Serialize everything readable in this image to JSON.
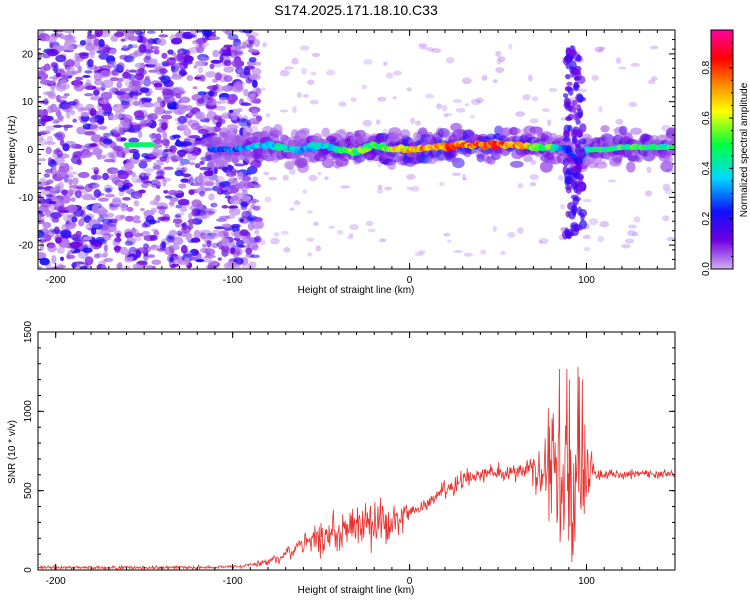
{
  "title": "S174.2025.171.18.10.C33",
  "chart_data": [
    {
      "type": "heatmap",
      "title": "S174.2025.171.18.10.C33",
      "xlabel": "Height of straight line (km)",
      "ylabel": "Frequency (Hz)",
      "xlim": [
        -210,
        150
      ],
      "ylim": [
        -25,
        25
      ],
      "xticks": [
        -200,
        -100,
        0,
        100
      ],
      "yticks": [
        -20,
        -10,
        0,
        10,
        20
      ],
      "xtick_labels": [
        "-200",
        "-100",
        "0",
        "100"
      ],
      "ytick_labels": [
        "-20",
        "-10",
        "0",
        "10",
        "20"
      ],
      "colorbar": {
        "label": "Normalized spectral amplitude",
        "range": [
          0,
          0.95
        ],
        "ticks": [
          "0.0",
          "0.2",
          "0.4",
          "0.6",
          "0.8"
        ],
        "colormap": [
          "#d0b0f0",
          "#7000e0",
          "#1010ff",
          "#00d8ff",
          "#00ff40",
          "#ffff00",
          "#ff8000",
          "#ff0000",
          "#ff00a0"
        ]
      },
      "ridge": {
        "x": [
          -160,
          -145,
          -110,
          -100,
          -90,
          -80,
          -70,
          -60,
          -50,
          -40,
          -30,
          -20,
          -10,
          0,
          10,
          20,
          30,
          40,
          50,
          60,
          70,
          80,
          90,
          95,
          100,
          110,
          120,
          130,
          140,
          150
        ],
        "freq": [
          1.0,
          1.0,
          0.0,
          0.0,
          0.5,
          1.0,
          0.0,
          0.0,
          1.0,
          0.0,
          -0.5,
          1.0,
          0.0,
          0.0,
          0.5,
          0.5,
          1.0,
          1.0,
          1.0,
          1.0,
          0.5,
          0.5,
          0.0,
          -3.0,
          0.0,
          0.0,
          0.5,
          0.5,
          0.5,
          0.5
        ],
        "amplitude": [
          0.4,
          0.4,
          0.3,
          0.3,
          0.35,
          0.4,
          0.4,
          0.35,
          0.4,
          0.45,
          0.55,
          0.5,
          0.6,
          0.7,
          0.75,
          0.8,
          0.75,
          0.8,
          0.8,
          0.75,
          0.6,
          0.5,
          0.3,
          0.2,
          0.45,
          0.45,
          0.5,
          0.5,
          0.5,
          0.5
        ]
      }
    },
    {
      "type": "line",
      "xlabel": "Height of straight line (km)",
      "ylabel": "SNR (10 * v/v)",
      "xlim": [
        -210,
        150
      ],
      "ylim": [
        0,
        1500
      ],
      "xticks": [
        -200,
        -100,
        0,
        100
      ],
      "yticks": [
        0,
        500,
        1000,
        1500
      ],
      "xtick_labels": [
        "-200",
        "-100",
        "0",
        "100"
      ],
      "ytick_labels": [
        "0",
        "500",
        "1000",
        "1500"
      ],
      "color": "#e8312e",
      "series": [
        {
          "x": [
            -210,
            -180,
            -150,
            -120,
            -100,
            -90,
            -80,
            -70,
            -60,
            -50,
            -40,
            -30,
            -20,
            -10,
            0,
            10,
            20,
            30,
            40,
            50,
            60,
            70,
            80,
            85,
            90,
            95,
            100,
            105,
            110,
            120,
            130,
            140,
            150
          ],
          "y": [
            15,
            15,
            15,
            15,
            20,
            30,
            50,
            100,
            150,
            200,
            250,
            310,
            300,
            320,
            350,
            420,
            500,
            560,
            600,
            610,
            630,
            640,
            640,
            650,
            640,
            620,
            620,
            600,
            600,
            600,
            610,
            600,
            610
          ],
          "noise": [
            10,
            10,
            10,
            10,
            10,
            15,
            25,
            40,
            70,
            110,
            130,
            120,
            150,
            130,
            40,
            40,
            50,
            50,
            50,
            50,
            60,
            90,
            300,
            450,
            500,
            450,
            250,
            40,
            30,
            25,
            25,
            25,
            25
          ]
        }
      ]
    }
  ]
}
